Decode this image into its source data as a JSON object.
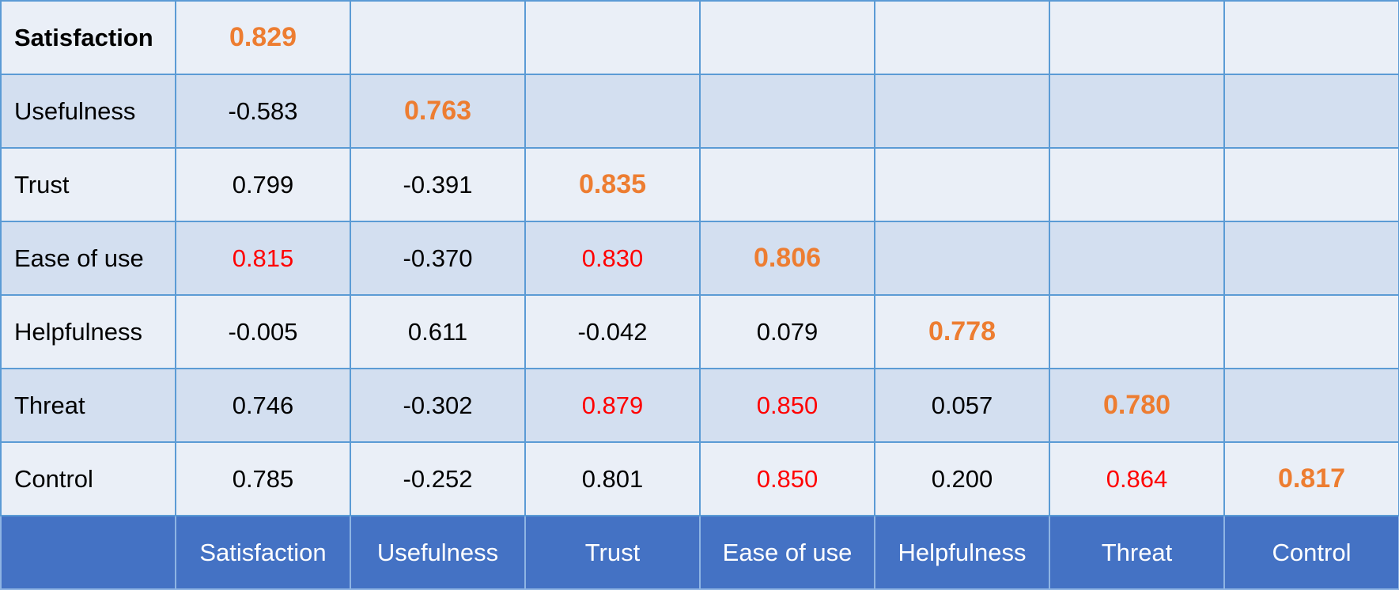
{
  "constructs": [
    "Satisfaction",
    "Usefulness",
    "Trust",
    "Ease of use",
    "Helpfulness",
    "Threat",
    "Control"
  ],
  "colors": {
    "diagonal": "#ed7d31",
    "highlight": "#ff0000",
    "header_bg": "#4472c4",
    "row_odd": "#eaeff7",
    "row_even": "#d3dff0"
  },
  "rows": [
    {
      "label": "Satisfaction",
      "bold": true,
      "cells": [
        {
          "value": "0.829",
          "diag": true
        }
      ]
    },
    {
      "label": "Usefulness",
      "cells": [
        {
          "value": "-0.583"
        },
        {
          "value": "0.763",
          "diag": true
        }
      ]
    },
    {
      "label": "Trust",
      "cells": [
        {
          "value": "0.799"
        },
        {
          "value": "-0.391"
        },
        {
          "value": "0.835",
          "diag": true
        }
      ]
    },
    {
      "label": "Ease of use",
      "cells": [
        {
          "value": "0.815",
          "high": true
        },
        {
          "value": "-0.370"
        },
        {
          "value": "0.830",
          "high": true
        },
        {
          "value": "0.806",
          "diag": true
        }
      ]
    },
    {
      "label": "Helpfulness",
      "cells": [
        {
          "value": "-0.005"
        },
        {
          "value": "0.611"
        },
        {
          "value": "-0.042"
        },
        {
          "value": "0.079"
        },
        {
          "value": "0.778",
          "diag": true
        }
      ]
    },
    {
      "label": "Threat",
      "cells": [
        {
          "value": "0.746"
        },
        {
          "value": "-0.302"
        },
        {
          "value": "0.879",
          "high": true
        },
        {
          "value": "0.850",
          "high": true
        },
        {
          "value": "0.057"
        },
        {
          "value": "0.780",
          "diag": true
        }
      ]
    },
    {
      "label": "Control",
      "cells": [
        {
          "value": "0.785"
        },
        {
          "value": "-0.252"
        },
        {
          "value": "0.801"
        },
        {
          "value": "0.850",
          "high": true
        },
        {
          "value": "0.200"
        },
        {
          "value": "0.864",
          "high": true
        },
        {
          "value": "0.817",
          "diag": true
        }
      ]
    }
  ]
}
